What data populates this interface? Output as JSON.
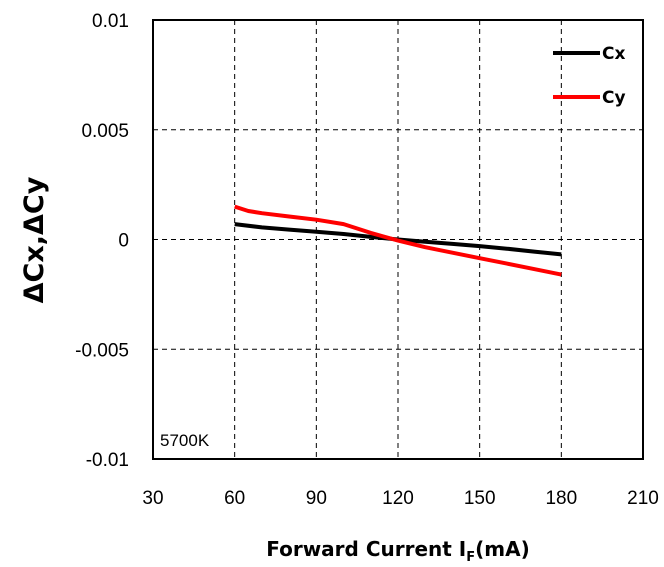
{
  "chart_data": {
    "type": "line",
    "xlabel": "Forward Current I",
    "xlabel_subscript": "F",
    "xlabel_suffix": "(mA)",
    "ylabel": "ΔCx,ΔCy",
    "xlim": [
      30,
      210
    ],
    "ylim": [
      -0.01,
      0.01
    ],
    "x_ticks": [
      30,
      60,
      90,
      120,
      150,
      180,
      210
    ],
    "y_ticks": [
      0.01,
      0.005,
      0,
      -0.005,
      -0.01
    ],
    "x_tick_labels": [
      "30",
      "60",
      "90",
      "120",
      "150",
      "180",
      "210"
    ],
    "y_tick_labels": [
      "0.01",
      "0.005",
      "0",
      "-0.005",
      "-0.01"
    ],
    "grid": true,
    "legend_position": "top-right",
    "annotation": "5700K",
    "series": [
      {
        "name": "Cx",
        "color": "#000000",
        "x": [
          60,
          70,
          80,
          90,
          100,
          110,
          120,
          130,
          140,
          150,
          160,
          170,
          180
        ],
        "y": [
          0.0007,
          0.00055,
          0.00045,
          0.00035,
          0.00025,
          0.00012,
          0.0,
          -0.0001,
          -0.0002,
          -0.0003,
          -0.00042,
          -0.00055,
          -0.00068
        ]
      },
      {
        "name": "Cy",
        "color": "#ff0000",
        "x": [
          60,
          65,
          70,
          80,
          90,
          100,
          110,
          120,
          130,
          140,
          150,
          160,
          170,
          180
        ],
        "y": [
          0.0015,
          0.0013,
          0.0012,
          0.00105,
          0.0009,
          0.0007,
          0.0003,
          -5e-05,
          -0.00035,
          -0.0006,
          -0.00085,
          -0.0011,
          -0.00135,
          -0.0016
        ]
      }
    ]
  }
}
